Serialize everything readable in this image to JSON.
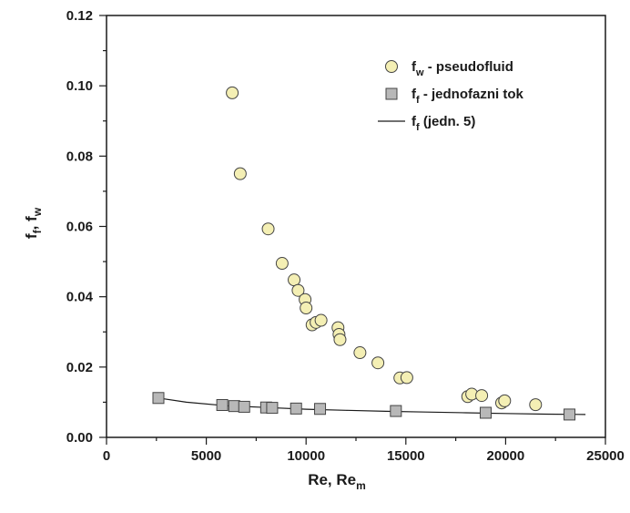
{
  "chart_data": {
    "type": "scatter",
    "xlabel": {
      "main": "Re, Re",
      "sub": "m"
    },
    "ylabel": {
      "p1": "f",
      "s1": "f",
      "mid": ", f",
      "s2": "w"
    },
    "xlim": [
      0,
      25000
    ],
    "ylim": [
      0,
      0.12
    ],
    "xticks": [
      "0",
      "5000",
      "10000",
      "15000",
      "20000",
      "25000"
    ],
    "yticks": [
      "0.00",
      "0.02",
      "0.04",
      "0.06",
      "0.08",
      "0.10",
      "0.12"
    ],
    "grid": false,
    "legend_position": "top-right",
    "legend": [
      {
        "main": "f",
        "sub": "w",
        "rest": " - pseudofluid",
        "marker": "circle"
      },
      {
        "main": "f",
        "sub": "f",
        "rest": " - jednofazni tok",
        "marker": "square"
      },
      {
        "main": "f",
        "sub": "f",
        "rest": " (jedn. 5)",
        "marker": "line"
      }
    ],
    "series": [
      {
        "marker": "circle",
        "color": "#f4efb4",
        "points": [
          [
            6300,
            0.098
          ],
          [
            6700,
            0.075
          ],
          [
            8100,
            0.0593
          ],
          [
            8800,
            0.0495
          ],
          [
            9400,
            0.0448
          ],
          [
            9600,
            0.0418
          ],
          [
            9950,
            0.0392
          ],
          [
            10000,
            0.0368
          ],
          [
            10300,
            0.032
          ],
          [
            10500,
            0.0327
          ],
          [
            10750,
            0.0333
          ],
          [
            11600,
            0.0312
          ],
          [
            11650,
            0.0293
          ],
          [
            11700,
            0.0278
          ],
          [
            12700,
            0.0241
          ],
          [
            13600,
            0.0212
          ],
          [
            14700,
            0.0169
          ],
          [
            15050,
            0.017
          ],
          [
            18100,
            0.0116
          ],
          [
            18300,
            0.0123
          ],
          [
            18800,
            0.0119
          ],
          [
            19800,
            0.0098
          ],
          [
            19950,
            0.0104
          ],
          [
            21500,
            0.0093
          ]
        ]
      },
      {
        "marker": "square",
        "color": "#b8b8b8",
        "points": [
          [
            2600,
            0.0112
          ],
          [
            5800,
            0.0092
          ],
          [
            6400,
            0.0089
          ],
          [
            6900,
            0.0087
          ],
          [
            8000,
            0.0085
          ],
          [
            8300,
            0.0084
          ],
          [
            9500,
            0.0082
          ],
          [
            10700,
            0.0081
          ],
          [
            14500,
            0.0075
          ],
          [
            19000,
            0.007
          ],
          [
            23200,
            0.0065
          ]
        ]
      },
      {
        "marker": "line",
        "color": "#1a1a1a",
        "points": [
          [
            2600,
            0.0112
          ],
          [
            4000,
            0.01
          ],
          [
            6000,
            0.009
          ],
          [
            8000,
            0.0085
          ],
          [
            10000,
            0.008
          ],
          [
            12000,
            0.0077
          ],
          [
            14000,
            0.0074
          ],
          [
            16000,
            0.0072
          ],
          [
            18000,
            0.007
          ],
          [
            20000,
            0.0068
          ],
          [
            22000,
            0.0066
          ],
          [
            24000,
            0.0065
          ]
        ]
      }
    ]
  }
}
